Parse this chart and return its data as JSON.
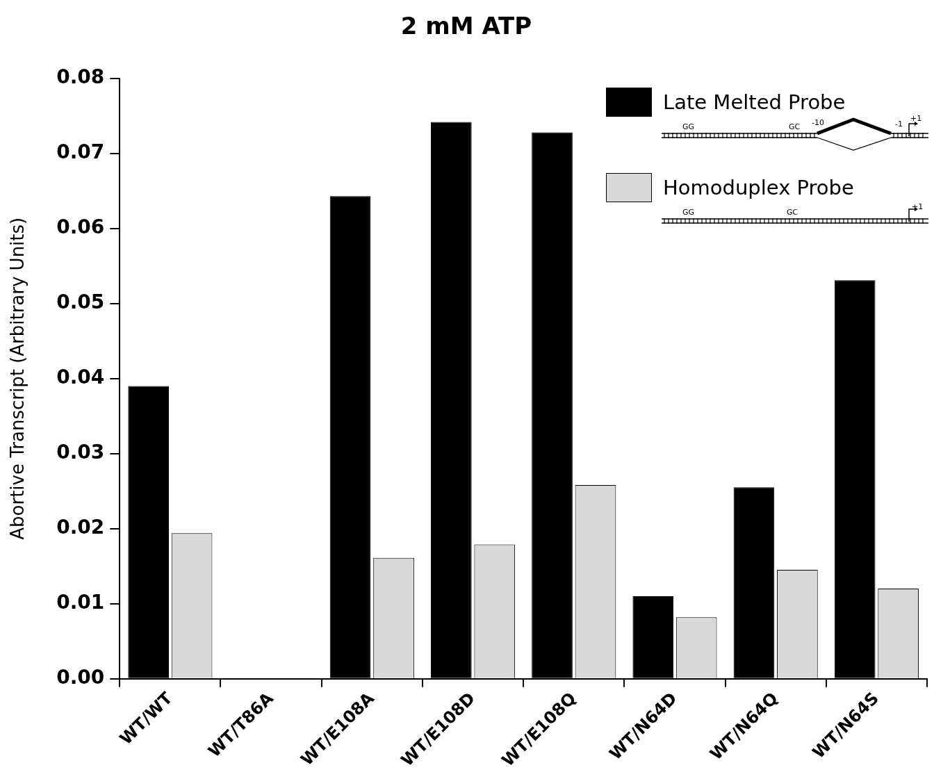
{
  "chart_data": {
    "type": "bar",
    "title": "2 mM ATP",
    "ylabel": "Abortive Transcript (Arbitrary Units)",
    "categories": [
      "WT/WT",
      "WT/T86A",
      "WT/E108A",
      "WT/E108D",
      "WT/E108Q",
      "WT/N64D",
      "WT/N64Q",
      "WT/N64S"
    ],
    "series": [
      {
        "name": "Late Melted Probe",
        "color": "#000000",
        "values": [
          0.039,
          0,
          0.0643,
          0.0742,
          0.0728,
          0.011,
          0.0255,
          0.0531
        ]
      },
      {
        "name": "Homoduplex Probe",
        "color": "#d9d9d9",
        "values": [
          0.0194,
          0,
          0.0161,
          0.0179,
          0.0258,
          0.0082,
          0.0145,
          0.012
        ]
      }
    ],
    "ylim": [
      0,
      0.08
    ],
    "yticks": [
      {
        "value": 0,
        "label": "0.00"
      },
      0.01,
      0.02,
      0.03,
      0.04,
      0.05,
      0.06,
      0.07,
      0.08
    ],
    "legend": "top right",
    "grid": false,
    "annotations": [
      "GG",
      "GC",
      "-10",
      "-1",
      "+1",
      "GG",
      "GC",
      "+1"
    ]
  }
}
